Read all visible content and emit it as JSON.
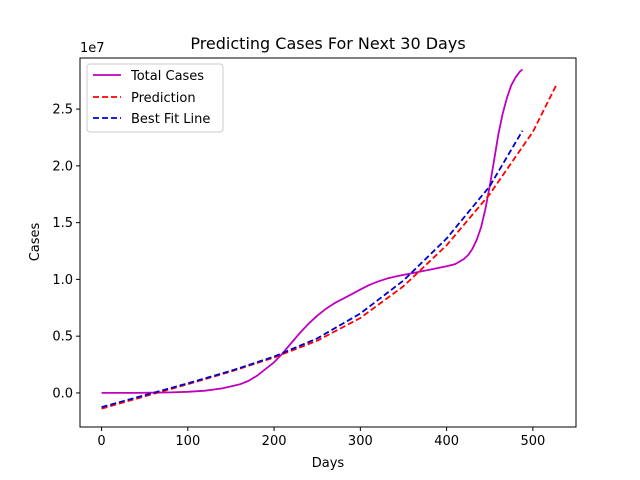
{
  "chart_data": {
    "type": "line",
    "title": "Predicting Cases For Next 30 Days",
    "xlabel": "Days",
    "ylabel": "Cases",
    "y_scale_label": "1e7",
    "xlim": [
      -25,
      550
    ],
    "ylim": [
      -3000000,
      29500000
    ],
    "x_ticks": [
      0,
      100,
      200,
      300,
      400,
      500
    ],
    "x_tick_labels": [
      "0",
      "100",
      "200",
      "300",
      "400",
      "500"
    ],
    "y_ticks": [
      0,
      5000000,
      10000000,
      15000000,
      20000000,
      25000000
    ],
    "y_tick_labels": [
      "0.0",
      "0.5",
      "1.0",
      "1.5",
      "2.0",
      "2.5"
    ],
    "grid": false,
    "legend_position": "upper-left",
    "series": [
      {
        "name": "Total Cases",
        "color": "#bf00bf",
        "style": "solid",
        "x": [
          0,
          20,
          40,
          60,
          80,
          100,
          120,
          140,
          160,
          170,
          180,
          190,
          200,
          210,
          220,
          230,
          240,
          250,
          260,
          270,
          280,
          290,
          300,
          310,
          320,
          330,
          340,
          350,
          360,
          370,
          380,
          390,
          400,
          410,
          420,
          425,
          430,
          435,
          440,
          445,
          450,
          455,
          460,
          465,
          470,
          475,
          480,
          485,
          488
        ],
        "y": [
          0,
          0,
          0,
          20000,
          50000,
          100000,
          200000,
          400000,
          750000,
          1050000,
          1500000,
          2100000,
          2700000,
          3500000,
          4400000,
          5300000,
          6100000,
          6800000,
          7400000,
          7900000,
          8300000,
          8700000,
          9100000,
          9500000,
          9800000,
          10050000,
          10250000,
          10400000,
          10550000,
          10700000,
          10850000,
          11000000,
          11150000,
          11350000,
          11800000,
          12150000,
          12700000,
          13500000,
          14600000,
          16200000,
          18200000,
          20500000,
          22800000,
          24600000,
          26000000,
          27100000,
          27800000,
          28300000,
          28500000
        ]
      },
      {
        "name": "Prediction",
        "color": "#ff0000",
        "style": "dashed",
        "x": [
          0,
          50,
          100,
          150,
          200,
          250,
          300,
          350,
          400,
          450,
          500,
          527
        ],
        "y": [
          -1380000,
          -300000,
          770000,
          1890000,
          3120000,
          4600000,
          6600000,
          9400000,
          13000000,
          17500000,
          23000000,
          27100000
        ]
      },
      {
        "name": "Best Fit Line",
        "color": "#0000cc",
        "style": "dashed",
        "x": [
          0,
          50,
          100,
          150,
          200,
          250,
          300,
          350,
          400,
          450,
          488
        ],
        "y": [
          -1250000,
          -200000,
          850000,
          1950000,
          3200000,
          4800000,
          7000000,
          9900000,
          13600000,
          18200000,
          23100000
        ]
      }
    ]
  }
}
